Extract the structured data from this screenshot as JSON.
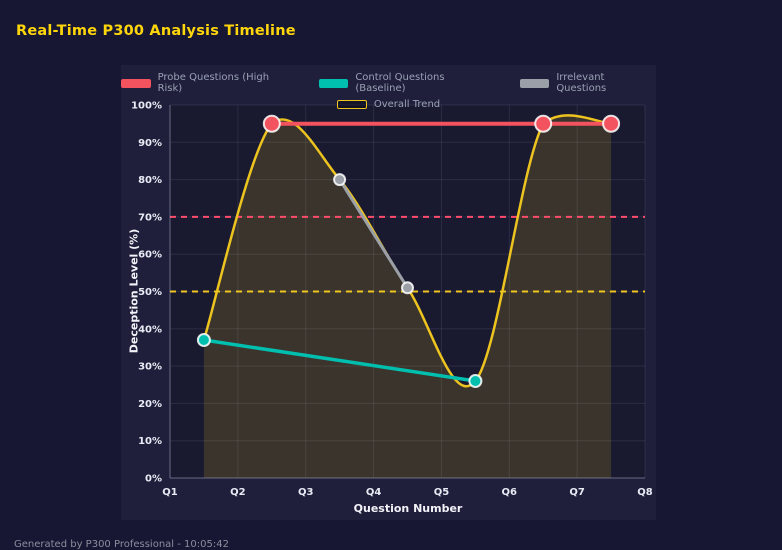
{
  "header": {
    "title": "Real-Time P300 Analysis Timeline"
  },
  "footer": {
    "text": "Generated by P300 Professional - 10:05:42"
  },
  "theme": {
    "page_bg": "#171733",
    "panel_bg": "#1f1f3b",
    "title_color": "#ffd60a",
    "axis_text": "#e9ebf5",
    "legend_text": "#9aa0b4",
    "grid": "rgba(170,175,210,0.13)"
  },
  "chart_data": {
    "type": "line",
    "title": "Real-Time P300 Analysis Timeline",
    "xlabel": "Question Number",
    "ylabel": "Deception Level (%)",
    "x_categories": [
      "Q1",
      "Q2",
      "Q3",
      "Q4",
      "Q5",
      "Q6",
      "Q7",
      "Q8"
    ],
    "x_range": [
      1,
      8
    ],
    "ylim": [
      0,
      100
    ],
    "y_ticks": [
      "0%",
      "10%",
      "20%",
      "30%",
      "40%",
      "50%",
      "60%",
      "70%",
      "80%",
      "90%",
      "100%"
    ],
    "grid": true,
    "legend_position": "top",
    "series": [
      {
        "key": "probe",
        "name": "Probe Questions (High Risk)",
        "color": "#f2535f",
        "points": [
          [
            2.5,
            95
          ],
          [
            6.5,
            95
          ],
          [
            7.5,
            95
          ]
        ],
        "line_width": 4,
        "marker_radius": 8,
        "swatch_filled": true
      },
      {
        "key": "control",
        "name": "Control Questions (Baseline)",
        "color": "#00bfae",
        "points": [
          [
            1.5,
            37
          ],
          [
            5.5,
            26
          ]
        ],
        "line_width": 3.5,
        "marker_radius": 6,
        "swatch_filled": true
      },
      {
        "key": "irrelevant",
        "name": "Irrelevant Questions",
        "color": "#9ba0a8",
        "points": [
          [
            3.5,
            80
          ],
          [
            4.5,
            51
          ]
        ],
        "line_width": 3,
        "marker_radius": 5.5,
        "swatch_filled": true
      },
      {
        "key": "trend",
        "name": "Overall Trend",
        "color": "#edc41f",
        "points": [
          [
            1.5,
            37
          ],
          [
            2.5,
            95
          ],
          [
            3.5,
            80
          ],
          [
            4.5,
            51
          ],
          [
            5.5,
            26
          ],
          [
            6.5,
            95
          ],
          [
            7.5,
            95
          ]
        ],
        "line_width": 2.5,
        "marker_radius": 0,
        "smooth": true,
        "fill": "rgba(237,196,31,0.16)",
        "swatch_filled": false
      }
    ],
    "thresholds": [
      {
        "value": 70,
        "color": "#ff4d6b",
        "dash": "6 5"
      },
      {
        "value": 50,
        "color": "#f0c420",
        "dash": "6 5"
      }
    ]
  }
}
